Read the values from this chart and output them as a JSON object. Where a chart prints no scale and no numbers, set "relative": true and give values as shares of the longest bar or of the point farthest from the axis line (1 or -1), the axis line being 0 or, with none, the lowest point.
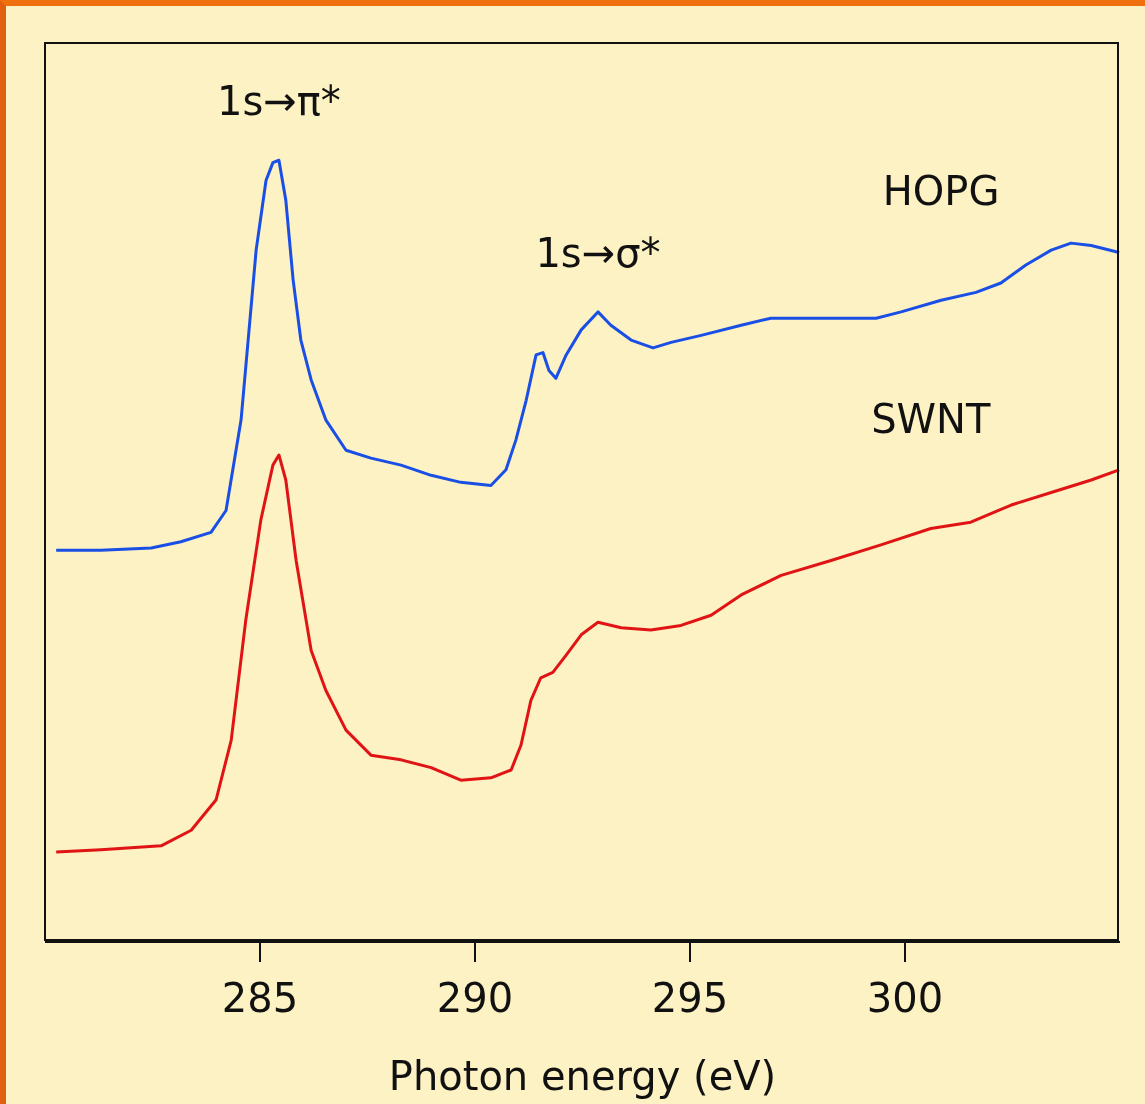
{
  "chart_data": {
    "type": "line",
    "relative": true,
    "xlabel": "Photon energy (eV)",
    "xlim": [
      280,
      305
    ],
    "xticks": [
      285,
      290,
      295,
      300
    ],
    "marker": "none",
    "annotations": [
      {
        "text": "1s→π*",
        "x": 285.44,
        "y": 1.0
      },
      {
        "text": "1s→σ*",
        "x": 292.86,
        "y": 0.806
      }
    ],
    "series": [
      {
        "name": "HOPG",
        "color": "#1a4fe6",
        "x": [
          280.26,
          281.3,
          282.47,
          283.16,
          283.86,
          284.21,
          284.56,
          284.91,
          285.14,
          285.3,
          285.44,
          285.6,
          285.77,
          285.95,
          286.19,
          286.53,
          287.0,
          287.58,
          288.28,
          288.98,
          289.67,
          290.37,
          290.72,
          290.95,
          291.19,
          291.42,
          291.58,
          291.72,
          291.88,
          292.12,
          292.47,
          292.86,
          293.16,
          293.63,
          294.14,
          294.56,
          295.26,
          296.19,
          296.88,
          297.58,
          298.51,
          299.33,
          299.91,
          300.84,
          301.65,
          302.23,
          302.81,
          303.4,
          303.86,
          304.33,
          304.98
        ],
        "values": [
          0.501,
          0.501,
          0.504,
          0.512,
          0.524,
          0.552,
          0.668,
          0.885,
          0.974,
          0.997,
          1.0,
          0.949,
          0.847,
          0.77,
          0.719,
          0.668,
          0.629,
          0.619,
          0.61,
          0.597,
          0.588,
          0.584,
          0.604,
          0.642,
          0.693,
          0.751,
          0.754,
          0.731,
          0.721,
          0.751,
          0.783,
          0.806,
          0.789,
          0.77,
          0.76,
          0.767,
          0.776,
          0.789,
          0.798,
          0.798,
          0.798,
          0.798,
          0.806,
          0.821,
          0.831,
          0.843,
          0.866,
          0.885,
          0.894,
          0.891,
          0.882
        ]
      },
      {
        "name": "SWNT",
        "color": "#e01414",
        "x": [
          280.26,
          281.3,
          282.7,
          283.4,
          283.98,
          284.33,
          284.67,
          285.02,
          285.3,
          285.44,
          285.6,
          285.84,
          286.19,
          286.53,
          287.0,
          287.58,
          288.28,
          288.98,
          289.67,
          290.37,
          290.84,
          291.07,
          291.3,
          291.53,
          291.81,
          292.12,
          292.47,
          292.86,
          293.4,
          294.09,
          294.79,
          295.49,
          296.19,
          297.12,
          298.28,
          299.44,
          300.6,
          301.53,
          302.47,
          303.4,
          304.33,
          304.98
        ],
        "values": [
          0.115,
          0.118,
          0.123,
          0.143,
          0.182,
          0.258,
          0.412,
          0.54,
          0.61,
          0.623,
          0.591,
          0.488,
          0.373,
          0.322,
          0.271,
          0.239,
          0.233,
          0.223,
          0.207,
          0.21,
          0.22,
          0.252,
          0.309,
          0.338,
          0.345,
          0.367,
          0.393,
          0.409,
          0.402,
          0.399,
          0.405,
          0.418,
          0.444,
          0.469,
          0.488,
          0.508,
          0.529,
          0.537,
          0.559,
          0.575,
          0.591,
          0.604
        ]
      }
    ]
  }
}
